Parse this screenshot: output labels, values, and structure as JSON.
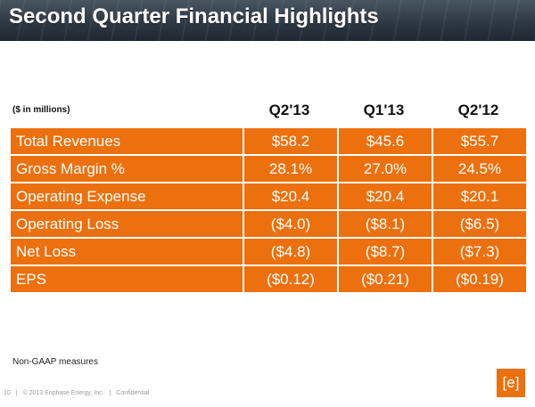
{
  "header": {
    "title": "Second Quarter Financial Highlights"
  },
  "table": {
    "units_label": "($ in millions)",
    "columns": [
      "Q2'13",
      "Q1'13",
      "Q2'12"
    ],
    "rows": [
      {
        "label": "Total Revenues",
        "values": [
          "$58.2",
          "$45.6",
          "$55.7"
        ]
      },
      {
        "label": "Gross Margin %",
        "values": [
          "28.1%",
          "27.0%",
          "24.5%"
        ]
      },
      {
        "label": "Operating Expense",
        "values": [
          "$20.4",
          "$20.4",
          "$20.1"
        ]
      },
      {
        "label": "Operating Loss",
        "values": [
          "($4.0)",
          "($8.1)",
          "($6.5)"
        ]
      },
      {
        "label": "Net Loss",
        "values": [
          "($4.8)",
          "($8.7)",
          "($7.3)"
        ]
      },
      {
        "label": "EPS",
        "values": [
          "($0.12)",
          "($0.21)",
          "($0.19)"
        ]
      }
    ]
  },
  "note": "Non-GAAP measures",
  "footer": {
    "page_number": "10",
    "separator": "|",
    "copyright": "© 2013 Enphase Energy, Inc.",
    "confidential": "Confidential"
  },
  "logo": {
    "text": "[e]",
    "color": "#ec700e"
  },
  "colors": {
    "table_fill": "#ec700e",
    "header_bg": "#2f3943"
  }
}
